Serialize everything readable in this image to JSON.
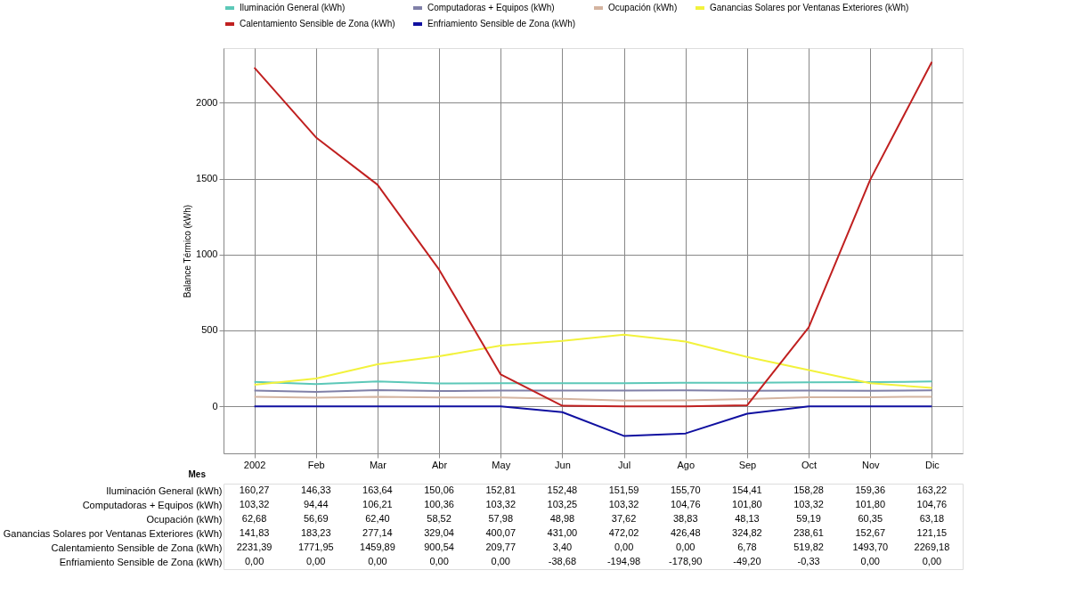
{
  "chart_data": {
    "type": "line",
    "xlabel": "Mes",
    "ylabel": "Balance Térmico (kWh)",
    "categories": [
      "2002",
      "Feb",
      "Mar",
      "Abr",
      "May",
      "Jun",
      "Jul",
      "Ago",
      "Sep",
      "Oct",
      "Nov",
      "Dic"
    ],
    "ylim": [
      -310,
      2360
    ],
    "yticks": [
      0,
      500,
      1000,
      1500,
      2000
    ],
    "grid": true,
    "legend": "top",
    "marker": "none",
    "line_style": "solid",
    "series": [
      {
        "name": "Iluminación General (kWh)",
        "color": "#5cc8b8",
        "values": [
          160.27,
          146.33,
          163.64,
          150.06,
          152.81,
          152.48,
          151.59,
          155.7,
          154.41,
          158.28,
          159.36,
          163.22
        ],
        "value_labels": [
          "160,27",
          "146,33",
          "163,64",
          "150,06",
          "152,81",
          "152,48",
          "151,59",
          "155,70",
          "154,41",
          "158,28",
          "159,36",
          "163,22"
        ]
      },
      {
        "name": "Computadoras + Equipos (kWh)",
        "color": "#8080a8",
        "values": [
          103.32,
          94.44,
          106.21,
          100.36,
          103.32,
          103.25,
          103.32,
          104.76,
          101.8,
          103.32,
          101.8,
          104.76
        ],
        "value_labels": [
          "103,32",
          "94,44",
          "106,21",
          "100,36",
          "103,32",
          "103,25",
          "103,32",
          "104,76",
          "101,80",
          "103,32",
          "101,80",
          "104,76"
        ]
      },
      {
        "name": "Ocupación (kWh)",
        "color": "#d4b4a0",
        "values": [
          62.68,
          56.69,
          62.4,
          58.52,
          57.98,
          48.98,
          37.62,
          38.83,
          48.13,
          59.19,
          60.35,
          63.18
        ],
        "value_labels": [
          "62,68",
          "56,69",
          "62,40",
          "58,52",
          "57,98",
          "48,98",
          "37,62",
          "38,83",
          "48,13",
          "59,19",
          "60,35",
          "63,18"
        ]
      },
      {
        "name": "Ganancias Solares por Ventanas Exteriores (kWh)",
        "color": "#f2f23c",
        "values": [
          141.83,
          183.23,
          277.14,
          329.04,
          400.07,
          431.0,
          472.02,
          426.48,
          324.82,
          238.61,
          152.67,
          121.15
        ],
        "value_labels": [
          "141,83",
          "183,23",
          "277,14",
          "329,04",
          "400,07",
          "431,00",
          "472,02",
          "426,48",
          "324,82",
          "238,61",
          "152,67",
          "121,15"
        ]
      },
      {
        "name": "Calentamiento Sensible de Zona (kWh)",
        "color": "#c02020",
        "values": [
          2231.39,
          1771.95,
          1459.89,
          900.54,
          209.77,
          3.4,
          0.0,
          0.0,
          6.78,
          519.82,
          1493.7,
          2269.18
        ],
        "value_labels": [
          "2231,39",
          "1771,95",
          "1459,89",
          "900,54",
          "209,77",
          "3,40",
          "0,00",
          "0,00",
          "6,78",
          "519,82",
          "1493,70",
          "2269,18"
        ]
      },
      {
        "name": "Enfriamiento Sensible de Zona (kWh)",
        "color": "#1010a0",
        "values": [
          0.0,
          0.0,
          0.0,
          0.0,
          0.0,
          -38.68,
          -194.98,
          -178.9,
          -49.2,
          -0.33,
          0.0,
          0.0
        ],
        "value_labels": [
          "0,00",
          "0,00",
          "0,00",
          "0,00",
          "0,00",
          "-38,68",
          "-194,98",
          "-178,90",
          "-49,20",
          "-0,33",
          "0,00",
          "0,00"
        ]
      }
    ]
  }
}
